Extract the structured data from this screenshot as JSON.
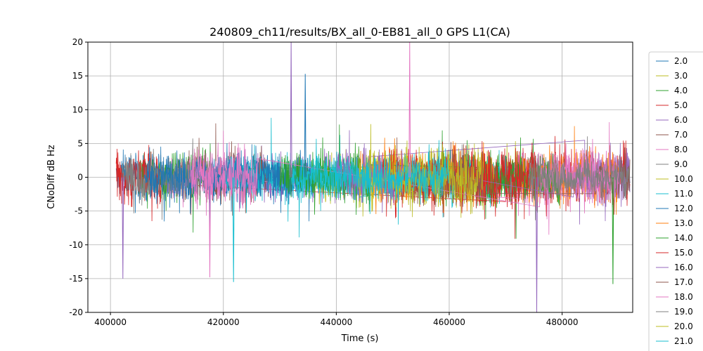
{
  "chart_data": {
    "type": "line",
    "title": "240809_ch11/results/BX_all_0-EB81_all_0 GPS L1(CA)",
    "xlabel": "Time (s)",
    "ylabel": "CNoDiff dB Hz",
    "xlim": [
      396000,
      492500
    ],
    "ylim": [
      -20,
      20
    ],
    "x_ticks": [
      400000,
      420000,
      440000,
      460000,
      480000
    ],
    "y_ticks": [
      -20,
      -15,
      -10,
      -5,
      0,
      5,
      10,
      15,
      20
    ],
    "grid": true,
    "legend_position": "outside-right",
    "series": [
      {
        "name": "2.0",
        "color": "#1f77b4",
        "segments": [
          [
            401000,
            412000
          ],
          [
            418000,
            430000
          ]
        ],
        "amp": 1.8
      },
      {
        "name": "3.0",
        "color": "#bcbd22",
        "segments": [
          [
            444000,
            472000
          ]
        ],
        "amp": 2.2
      },
      {
        "name": "4.0",
        "color": "#2ca02c",
        "segments": [
          [
            405000,
            418000
          ],
          [
            458000,
            478000
          ]
        ],
        "amp": 1.9
      },
      {
        "name": "5.0",
        "color": "#d62728",
        "segments": [
          [
            401000,
            409000
          ],
          [
            470000,
            492000
          ]
        ],
        "amp": 2.3
      },
      {
        "name": "6.0",
        "color": "#9467bd",
        "segments": [
          [
            426000,
            446000
          ],
          [
            484000,
            492000
          ]
        ],
        "amp": 2.0
      },
      {
        "name": "7.0",
        "color": "#8c564b",
        "segments": [
          [
            412000,
            428000
          ],
          [
            448000,
            462000
          ]
        ],
        "amp": 2.0
      },
      {
        "name": "8.0",
        "color": "#e377c2",
        "segments": [
          [
            410000,
            424000
          ],
          [
            472000,
            488000
          ]
        ],
        "amp": 2.1
      },
      {
        "name": "9.0",
        "color": "#7f7f7f",
        "segments": [
          [
            402000,
            416000
          ],
          [
            462000,
            480000
          ]
        ],
        "amp": 1.8
      },
      {
        "name": "10.0",
        "color": "#bcbd22",
        "segments": [
          [
            436000,
            456000
          ]
        ],
        "amp": 1.9
      },
      {
        "name": "11.0",
        "color": "#17becf",
        "segments": [
          [
            420000,
            444000
          ],
          [
            454000,
            470000
          ]
        ],
        "amp": 1.8
      },
      {
        "name": "12.0",
        "color": "#1f77b4",
        "segments": [
          [
            406000,
            436000
          ]
        ],
        "amp": 1.7
      },
      {
        "name": "13.0",
        "color": "#ff7f0e",
        "segments": [
          [
            444000,
            468000
          ],
          [
            472000,
            490000
          ]
        ],
        "amp": 2.1
      },
      {
        "name": "14.0",
        "color": "#2ca02c",
        "segments": [
          [
            430000,
            446000
          ],
          [
            466000,
            480000
          ]
        ],
        "amp": 1.9
      },
      {
        "name": "15.0",
        "color": "#d62728",
        "segments": [
          [
            448000,
            476000
          ]
        ],
        "amp": 2.4
      },
      {
        "name": "16.0",
        "color": "#9467bd",
        "segments": [
          [
            440000,
            452000
          ],
          [
            482000,
            492000
          ]
        ],
        "amp": 1.9
      },
      {
        "name": "17.0",
        "color": "#8c564b",
        "segments": [
          [
            452000,
            466000
          ],
          [
            486000,
            492000
          ]
        ],
        "amp": 2.0
      },
      {
        "name": "18.0",
        "color": "#e377c2",
        "segments": [
          [
            414000,
            426000
          ],
          [
            476000,
            490000
          ]
        ],
        "amp": 2.0
      },
      {
        "name": "19.0",
        "color": "#7f7f7f",
        "segments": [
          [
            474000,
            492000
          ]
        ],
        "amp": 1.6
      },
      {
        "name": "20.0",
        "color": "#bcbd22",
        "segments": [
          [
            444000,
            466000
          ]
        ],
        "amp": 2.0
      },
      {
        "name": "21.0",
        "color": "#17becf",
        "segments": [
          [
            432000,
            460000
          ]
        ],
        "amp": 1.8
      }
    ],
    "spikes": [
      {
        "series": 4,
        "x": 432000,
        "y": 20
      },
      {
        "series": 16,
        "x": 453000,
        "y": 20
      },
      {
        "series": 14,
        "x": 475500,
        "y": -20
      },
      {
        "series": 10,
        "x": 434500,
        "y": 15.3
      },
      {
        "series": 9,
        "x": 421800,
        "y": -15.5
      },
      {
        "series": 4,
        "x": 402200,
        "y": -15
      },
      {
        "series": 16,
        "x": 417600,
        "y": -14.8
      },
      {
        "series": 12,
        "x": 489000,
        "y": -15.8
      }
    ]
  }
}
